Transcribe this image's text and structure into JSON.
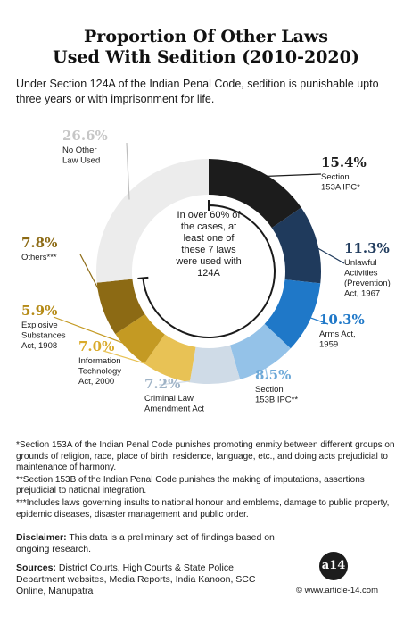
{
  "title_line1": "Proportion Of Other Laws",
  "title_line2": "Used With Sedition (2010-2020)",
  "intro": "Under Section 124A of the Indian Penal Code, sedition is punishable upto three years or with imprisonment for life.",
  "center_lines": [
    "In over 60% of",
    "the cases, at",
    "least one of",
    "these 7 laws",
    "were used with",
    "124A"
  ],
  "chart_data": {
    "type": "pie",
    "title": "Proportion Of Other Laws Used With Sedition (2010-2020)",
    "slices": [
      {
        "pct_label": "15.4%",
        "value": 15.4,
        "label_lines": [
          "Section",
          "153A IPC*"
        ],
        "color": "#1c1c1c",
        "pct_color": "#1c1c1c"
      },
      {
        "pct_label": "11.3%",
        "value": 11.3,
        "label_lines": [
          "Unlawful",
          "Activities",
          "(Prevention)",
          "Act, 1967"
        ],
        "color": "#1f3a5c",
        "pct_color": "#1f3a5c"
      },
      {
        "pct_label": "10.3%",
        "value": 10.3,
        "label_lines": [
          "Arms Act,",
          "1959"
        ],
        "color": "#1f78c8",
        "pct_color": "#1f78c8"
      },
      {
        "pct_label": "8.5%",
        "value": 8.5,
        "label_lines": [
          "Section",
          "153B IPC**"
        ],
        "color": "#94c2e8",
        "pct_color": "#6ea9d8"
      },
      {
        "pct_label": "7.2%",
        "value": 7.2,
        "label_lines": [
          "Criminal Law",
          "Amendment Act"
        ],
        "color": "#cfdbe7",
        "pct_color": "#9fb3c6"
      },
      {
        "pct_label": "7.0%",
        "value": 7.0,
        "label_lines": [
          "Information",
          "Technology",
          "Act, 2000"
        ],
        "color": "#e8c255",
        "pct_color": "#d9aa2a"
      },
      {
        "pct_label": "5.9%",
        "value": 5.9,
        "label_lines": [
          "Explosive",
          "Substances",
          "Act, 1908"
        ],
        "color": "#c49a23",
        "pct_color": "#b58a15"
      },
      {
        "pct_label": "7.8%",
        "value": 7.8,
        "label_lines": [
          "Others***"
        ],
        "color": "#8c6a14",
        "pct_color": "#8c6a14"
      },
      {
        "pct_label": "26.6%",
        "value": 26.6,
        "label_lines": [
          "No Other",
          "Law Used"
        ],
        "color": "#ececec",
        "pct_color": "#c6c6c6"
      }
    ]
  },
  "notes": [
    "*Section 153A of the Indian Penal Code punishes promoting enmity between different groups on grounds of religion, race, place of birth, residence, language, etc., and doing acts prejudicial to maintenance of harmony.",
    "**Section 153B of the Indian Penal Code punishes the making of imputations, assertions prejudicial to national integration.",
    "***Includes laws governing insults to national honour and emblems, damage to public property, epidemic diseases, disaster management and public order."
  ],
  "disclaimer_label": "Disclaimer:",
  "disclaimer_text": " This data is a preliminary set of findings based on ongoing research.",
  "sources_label": "Sources:",
  "sources_text": " District Courts, High Courts & State Police Department websites, Media Reports, India Kanoon, SCC Online, Manupatra",
  "logo_text": "a14",
  "copyright": "© www.article-14.com"
}
